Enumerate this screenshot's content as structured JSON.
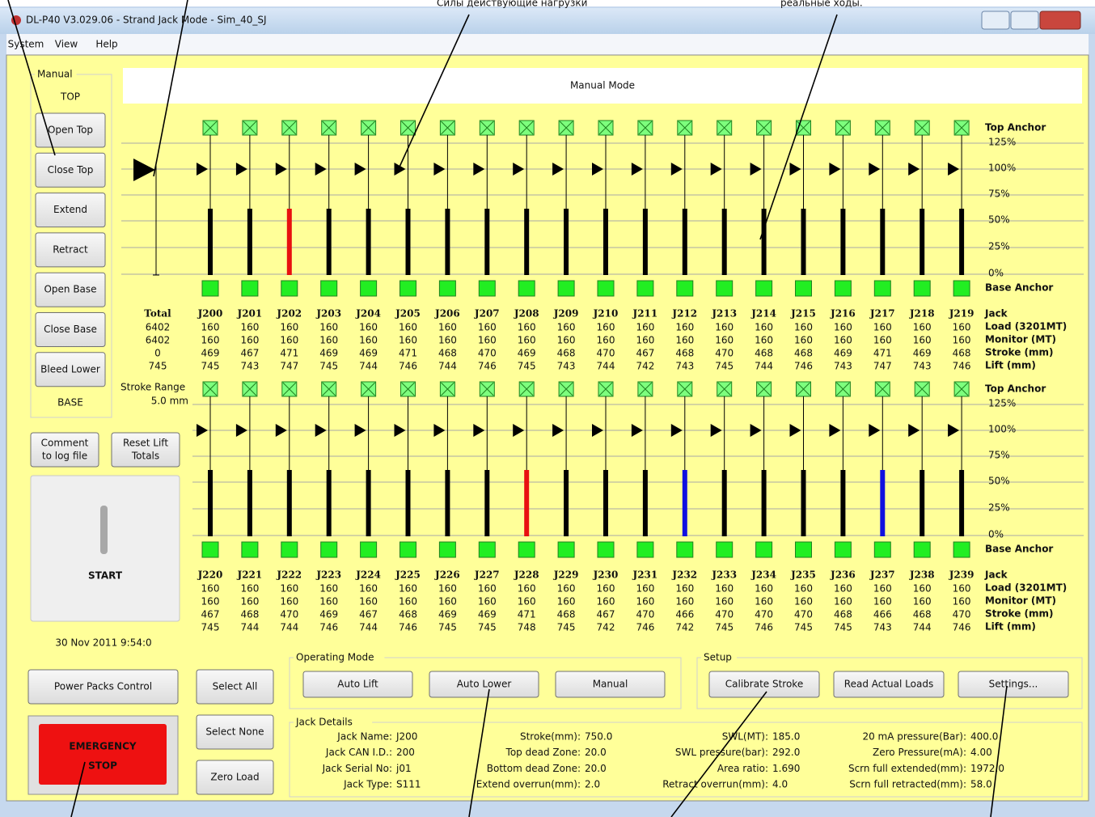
{
  "annotations": [
    "Силы действующие нагрузки",
    "реальные ходы."
  ],
  "window": {
    "title": "DL-P40 V3.029.06 - Strand Jack Mode - Sim_40_SJ",
    "menu": [
      "System",
      "View",
      "Help"
    ]
  },
  "panel_title": "Manual Mode",
  "manual_group": {
    "label": "Manual",
    "top": "TOP",
    "base": "BASE",
    "buttons": [
      "Open Top",
      "Close Top",
      "Extend",
      "Retract",
      "Open Base",
      "Close Base",
      "Bleed Lower"
    ]
  },
  "comment_button": [
    "Comment",
    "to log file"
  ],
  "reset_button": [
    "Reset Lift",
    "Totals"
  ],
  "start": "START",
  "datetime": "30 Nov 2011 9:54:0",
  "power_button": "Power Packs Control",
  "emergency": [
    "EMERGENCY",
    "STOP"
  ],
  "select_buttons": [
    "Select All",
    "Select None",
    "Zero Load"
  ],
  "operating_mode": {
    "label": "Operating Mode",
    "buttons": [
      "Auto Lift",
      "Auto Lower",
      "Manual"
    ]
  },
  "setup": {
    "label": "Setup",
    "buttons": [
      "Calibrate Stroke",
      "Read Actual Loads",
      "Settings..."
    ]
  },
  "jack_details": {
    "label": "Jack Details",
    "columns": [
      [
        {
          "label": "Jack Name:",
          "value": "J200"
        },
        {
          "label": "Jack CAN I.D.:",
          "value": "200"
        },
        {
          "label": "Jack Serial No:",
          "value": "j01"
        },
        {
          "label": "Jack Type:",
          "value": "S111"
        }
      ],
      [
        {
          "label": "Stroke(mm):",
          "value": "750.0"
        },
        {
          "label": "Top dead Zone:",
          "value": "20.0"
        },
        {
          "label": "Bottom dead Zone:",
          "value": "20.0"
        },
        {
          "label": "Extend overrun(mm):",
          "value": "2.0"
        }
      ],
      [
        {
          "label": "SWL(MT):",
          "value": "185.0"
        },
        {
          "label": "SWL pressure(bar):",
          "value": "292.0"
        },
        {
          "label": "Area ratio:",
          "value": "1.690"
        },
        {
          "label": "Retract overrun(mm):",
          "value": "4.0"
        }
      ],
      [
        {
          "label": "20 mA pressure(Bar):",
          "value": "400.0"
        },
        {
          "label": "Zero Pressure(mA):",
          "value": "4.00"
        },
        {
          "label": "Scrn full extended(mm):",
          "value": "1972.0"
        },
        {
          "label": "Scrn full retracted(mm):",
          "value": "58.0"
        }
      ]
    ]
  },
  "scale": {
    "top_anchor": "Top Anchor",
    "base_anchor": "Base Anchor",
    "percents": [
      "125%",
      "100%",
      "75%",
      "50%",
      "25%",
      "0%"
    ],
    "row_labels": [
      "Jack",
      "Load (3201MT)",
      "Monitor (MT)",
      "Stroke (mm)",
      "Lift (mm)"
    ]
  },
  "total": {
    "header": "Total",
    "values": [
      6402,
      6402,
      0,
      745
    ]
  },
  "stroke_range": [
    "Stroke Range",
    "5.0 mm"
  ],
  "groups": [
    {
      "names": [
        "J200",
        "J201",
        "J202",
        "J203",
        "J204",
        "J205",
        "J206",
        "J207",
        "J208",
        "J209",
        "J210",
        "J211",
        "J212",
        "J213",
        "J214",
        "J215",
        "J216",
        "J217",
        "J218",
        "J219"
      ],
      "load": [
        160,
        160,
        160,
        160,
        160,
        160,
        160,
        160,
        160,
        160,
        160,
        160,
        160,
        160,
        160,
        160,
        160,
        160,
        160,
        160
      ],
      "monitor": [
        160,
        160,
        160,
        160,
        160,
        160,
        160,
        160,
        160,
        160,
        160,
        160,
        160,
        160,
        160,
        160,
        160,
        160,
        160,
        160
      ],
      "stroke": [
        469,
        467,
        471,
        469,
        469,
        471,
        468,
        470,
        469,
        468,
        470,
        467,
        468,
        470,
        468,
        468,
        469,
        471,
        469,
        468
      ],
      "lift": [
        745,
        743,
        747,
        745,
        744,
        746,
        744,
        746,
        745,
        743,
        744,
        742,
        743,
        745,
        744,
        746,
        743,
        747,
        743,
        746
      ],
      "bar_colors": [
        "#000",
        "#000",
        "#e81010",
        "#000",
        "#000",
        "#000",
        "#000",
        "#000",
        "#000",
        "#000",
        "#000",
        "#000",
        "#000",
        "#000",
        "#000",
        "#000",
        "#000",
        "#000",
        "#000",
        "#000"
      ]
    },
    {
      "names": [
        "J220",
        "J221",
        "J222",
        "J223",
        "J224",
        "J225",
        "J226",
        "J227",
        "J228",
        "J229",
        "J230",
        "J231",
        "J232",
        "J233",
        "J234",
        "J235",
        "J236",
        "J237",
        "J238",
        "J239"
      ],
      "load": [
        160,
        160,
        160,
        160,
        160,
        160,
        160,
        160,
        160,
        160,
        160,
        160,
        160,
        160,
        160,
        160,
        160,
        160,
        160,
        160
      ],
      "monitor": [
        160,
        160,
        160,
        160,
        160,
        160,
        160,
        160,
        160,
        160,
        160,
        160,
        160,
        160,
        160,
        160,
        160,
        160,
        160,
        160
      ],
      "stroke": [
        467,
        468,
        470,
        469,
        467,
        468,
        469,
        469,
        471,
        468,
        467,
        470,
        466,
        470,
        470,
        470,
        468,
        466,
        468,
        470
      ],
      "lift": [
        745,
        744,
        744,
        746,
        744,
        746,
        745,
        745,
        748,
        745,
        742,
        746,
        742,
        745,
        746,
        745,
        745,
        743,
        744,
        746
      ],
      "bar_colors": [
        "#000",
        "#000",
        "#000",
        "#000",
        "#000",
        "#000",
        "#000",
        "#000",
        "#e81010",
        "#000",
        "#000",
        "#000",
        "#1010e0",
        "#000",
        "#000",
        "#000",
        "#000",
        "#1010e0",
        "#000",
        "#000"
      ]
    }
  ]
}
